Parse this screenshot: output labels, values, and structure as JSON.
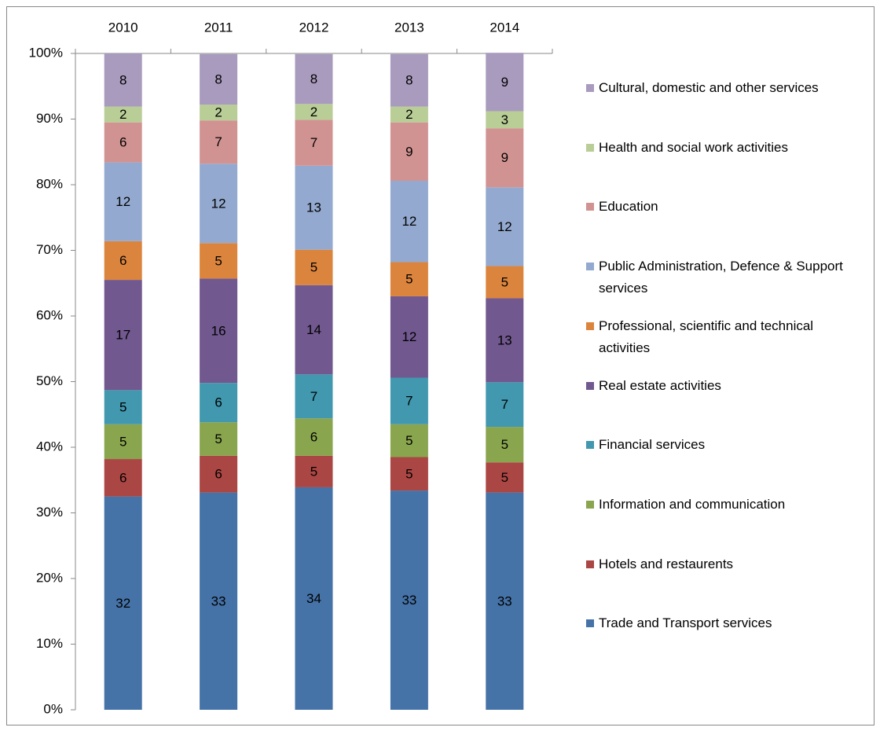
{
  "chart_data": {
    "type": "stacked_bar",
    "categories": [
      "2010",
      "2011",
      "2012",
      "2013",
      "2014"
    ],
    "ylim": [
      0,
      100
    ],
    "yticks": [
      {
        "value": 0,
        "label": "0%"
      },
      {
        "value": 10,
        "label": "10%"
      },
      {
        "value": 20,
        "label": "20%"
      },
      {
        "value": 30,
        "label": "30%"
      },
      {
        "value": 40,
        "label": "40%"
      },
      {
        "value": 50,
        "label": "50%"
      },
      {
        "value": 60,
        "label": "60%"
      },
      {
        "value": 70,
        "label": "70%"
      },
      {
        "value": 80,
        "label": "80%"
      },
      {
        "value": 90,
        "label": "90%"
      },
      {
        "value": 100,
        "label": "100%"
      }
    ],
    "series": [
      {
        "name": "Trade and Transport services",
        "color": "#4572a7",
        "values": [
          32.5,
          33.1,
          33.9,
          33.4,
          33.1
        ],
        "value_labels": [
          "32",
          "33",
          "34",
          "33",
          "33"
        ]
      },
      {
        "name": "Hotels and restaurents",
        "color": "#aa4643",
        "values": [
          5.7,
          5.6,
          4.8,
          5.1,
          4.6
        ],
        "value_labels": [
          "6",
          "6",
          "5",
          "5",
          "5"
        ]
      },
      {
        "name": "Information and communication",
        "color": "#89a54e",
        "values": [
          5.3,
          5.1,
          5.7,
          5.0,
          5.4
        ],
        "value_labels": [
          "5",
          "5",
          "6",
          "5",
          "5"
        ]
      },
      {
        "name": "Financial services",
        "color": "#4198af",
        "values": [
          5.2,
          6.0,
          6.7,
          7.1,
          6.8
        ],
        "value_labels": [
          "5",
          "6",
          "7",
          "7",
          "7"
        ]
      },
      {
        "name": "Real estate activities",
        "color": "#71588f",
        "values": [
          16.8,
          15.9,
          13.6,
          12.4,
          12.8
        ],
        "value_labels": [
          "17",
          "16",
          "14",
          "12",
          "13"
        ]
      },
      {
        "name": "Professional, scientific and technical activities",
        "color": "#db843d",
        "values": [
          5.9,
          5.4,
          5.4,
          5.2,
          4.9
        ],
        "value_labels": [
          "6",
          "5",
          "5",
          "5",
          "5"
        ]
      },
      {
        "name": "Public Administration, Defence & Support services",
        "color": "#93a9cf",
        "values": [
          12.0,
          12.1,
          12.8,
          12.4,
          12.0
        ],
        "value_labels": [
          "12",
          "12",
          "13",
          "12",
          "12"
        ]
      },
      {
        "name": "Education",
        "color": "#d19392",
        "values": [
          6.1,
          6.6,
          7.0,
          8.9,
          9.0
        ],
        "value_labels": [
          "6",
          "7",
          "7",
          "9",
          "9"
        ]
      },
      {
        "name": "Health and social work activities",
        "color": "#b9cd96",
        "values": [
          2.4,
          2.4,
          2.4,
          2.4,
          2.6
        ],
        "value_labels": [
          "2",
          "2",
          "2",
          "2",
          "3"
        ]
      },
      {
        "name": "Cultural, domestic and other services",
        "color": "#a99bbd",
        "values": [
          8.1,
          7.7,
          7.6,
          8.0,
          8.9
        ],
        "value_labels": [
          "8",
          "8",
          "8",
          "8",
          "9"
        ]
      }
    ]
  }
}
